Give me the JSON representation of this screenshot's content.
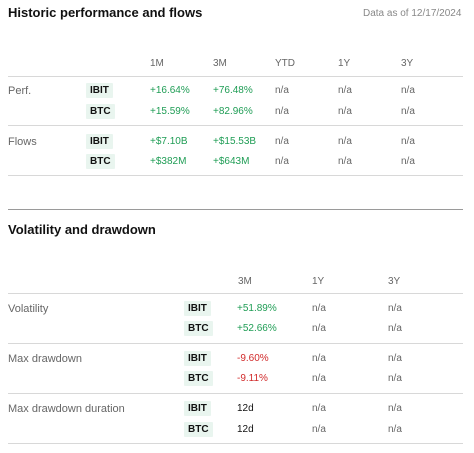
{
  "section1": {
    "title": "Historic performance and flows",
    "as_of": "Data as of 12/17/2024",
    "columns": [
      "1M",
      "3M",
      "YTD",
      "1Y",
      "3Y"
    ],
    "groups": [
      {
        "label": "Perf.",
        "rows": [
          {
            "ticker": "IBIT",
            "values": [
              "+16.64%",
              "+76.48%",
              "n/a",
              "n/a",
              "n/a"
            ]
          },
          {
            "ticker": "BTC",
            "values": [
              "+15.59%",
              "+82.96%",
              "n/a",
              "n/a",
              "n/a"
            ]
          }
        ]
      },
      {
        "label": "Flows",
        "rows": [
          {
            "ticker": "IBIT",
            "values": [
              "+$7.10B",
              "+$15.53B",
              "n/a",
              "n/a",
              "n/a"
            ]
          },
          {
            "ticker": "BTC",
            "values": [
              "+$382M",
              "+$643M",
              "n/a",
              "n/a",
              "n/a"
            ]
          }
        ]
      }
    ]
  },
  "section2": {
    "title": "Volatility and drawdown",
    "columns": [
      "3M",
      "1Y",
      "3Y"
    ],
    "groups": [
      {
        "label": "Volatility",
        "rows": [
          {
            "ticker": "IBIT",
            "values": [
              "+51.89%",
              "n/a",
              "n/a"
            ]
          },
          {
            "ticker": "BTC",
            "values": [
              "+52.66%",
              "n/a",
              "n/a"
            ]
          }
        ]
      },
      {
        "label": "Max drawdown",
        "rows": [
          {
            "ticker": "IBIT",
            "values": [
              "-9.60%",
              "n/a",
              "n/a"
            ]
          },
          {
            "ticker": "BTC",
            "values": [
              "-9.11%",
              "n/a",
              "n/a"
            ]
          }
        ]
      },
      {
        "label": "Max drawdown duration",
        "rows": [
          {
            "ticker": "IBIT",
            "values": [
              "12d",
              "n/a",
              "n/a"
            ]
          },
          {
            "ticker": "BTC",
            "values": [
              "12d",
              "n/a",
              "n/a"
            ]
          }
        ]
      }
    ]
  },
  "colors": {
    "positive": "#1f9d55",
    "negative": "#d12a2a",
    "ticker_bg": "#e9f5ef"
  }
}
